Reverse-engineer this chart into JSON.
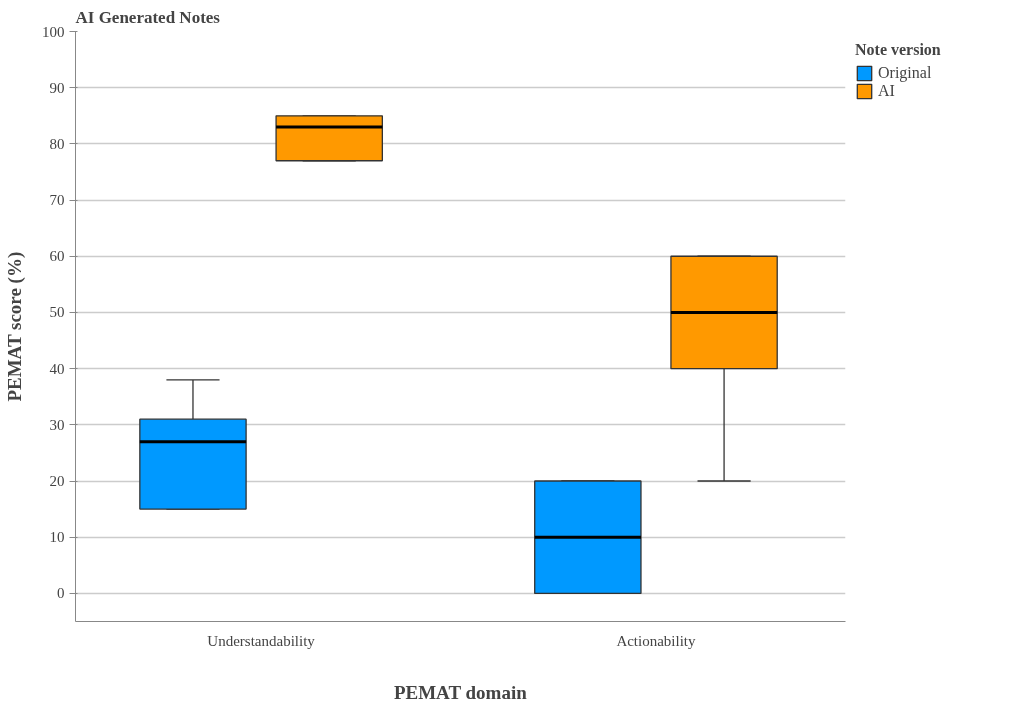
{
  "chart_data": {
    "type": "box",
    "title": "AI Generated Notes",
    "xlabel": "PEMAT domain",
    "ylabel": "PEMAT score (%)",
    "legend_title": "Note version",
    "categories": [
      "Understandability",
      "Actionability"
    ],
    "series": [
      {
        "name": "Original",
        "color": "#0099ff",
        "boxes": [
          {
            "low": 15,
            "q1": 15,
            "median": 27,
            "q3": 31,
            "high": 38
          },
          {
            "low": 0,
            "q1": 0,
            "median": 10,
            "q3": 20,
            "high": 20
          }
        ]
      },
      {
        "name": "AI",
        "color": "#ff9900",
        "boxes": [
          {
            "low": 77,
            "q1": 77,
            "median": 83,
            "q3": 85,
            "high": 85
          },
          {
            "low": 20,
            "q1": 40,
            "median": 50,
            "q3": 60,
            "high": 60
          }
        ]
      }
    ],
    "ylim": [
      -5,
      100
    ],
    "yticks": [
      0,
      10,
      20,
      30,
      40,
      50,
      60,
      70,
      80,
      90,
      100
    ],
    "grid": "y",
    "legend": "top right"
  }
}
